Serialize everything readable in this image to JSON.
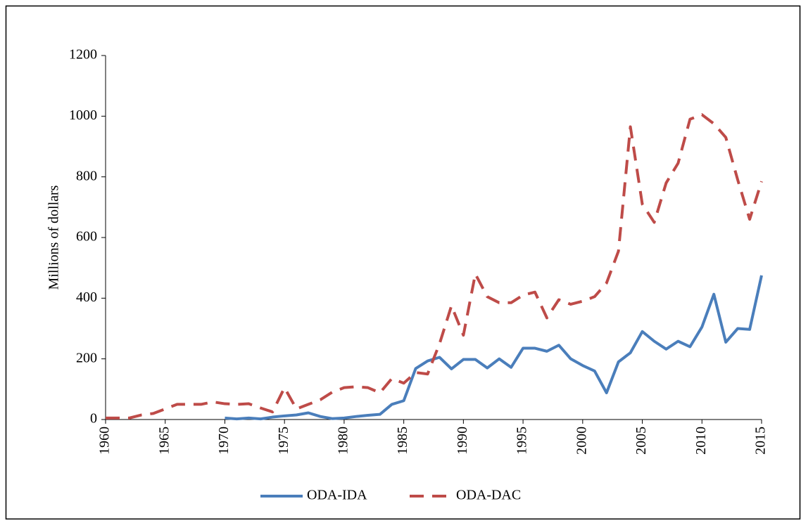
{
  "chart_data": {
    "type": "line",
    "y_label": "Millions of dollars",
    "x": [
      1960,
      1961,
      1962,
      1963,
      1964,
      1965,
      1966,
      1967,
      1968,
      1969,
      1970,
      1971,
      1972,
      1973,
      1974,
      1975,
      1976,
      1977,
      1978,
      1979,
      1980,
      1981,
      1982,
      1983,
      1984,
      1985,
      1986,
      1987,
      1988,
      1989,
      1990,
      1991,
      1992,
      1993,
      1994,
      1995,
      1996,
      1997,
      1998,
      1999,
      2000,
      2001,
      2002,
      2003,
      2004,
      2005,
      2006,
      2007,
      2008,
      2009,
      2010,
      2011,
      2012,
      2013,
      2014,
      2015
    ],
    "series": [
      {
        "name": "ODA-IDA",
        "color": "#4a7ebb",
        "dashed": false,
        "values": [
          null,
          null,
          null,
          null,
          null,
          null,
          null,
          null,
          null,
          null,
          5,
          2,
          5,
          2,
          8,
          12,
          15,
          22,
          10,
          3,
          5,
          10,
          14,
          17,
          50,
          62,
          168,
          193,
          205,
          167,
          198,
          198,
          170,
          200,
          172,
          235,
          235,
          225,
          245,
          200,
          178,
          160,
          88,
          190,
          220,
          290,
          258,
          232,
          258,
          240,
          305,
          413,
          255,
          300,
          297,
          475
        ]
      },
      {
        "name": "ODA-DAC",
        "color": "#be4b48",
        "dashed": true,
        "values": [
          5,
          5,
          5,
          15,
          20,
          35,
          50,
          50,
          50,
          58,
          52,
          50,
          52,
          38,
          25,
          105,
          35,
          50,
          65,
          90,
          105,
          108,
          105,
          88,
          135,
          120,
          155,
          150,
          250,
          375,
          278,
          480,
          405,
          385,
          385,
          410,
          420,
          335,
          395,
          380,
          390,
          405,
          450,
          555,
          965,
          710,
          650,
          780,
          845,
          990,
          1005,
          975,
          930,
          790,
          660,
          785
        ]
      }
    ],
    "xlim": [
      1960,
      2015
    ],
    "xticks": [
      1960,
      1965,
      1970,
      1975,
      1980,
      1985,
      1990,
      1995,
      2000,
      2005,
      2010,
      2015
    ],
    "ylim": [
      0,
      1200
    ],
    "yticks": [
      0,
      200,
      400,
      600,
      800,
      1000,
      1200
    ],
    "legend": "bottom"
  }
}
